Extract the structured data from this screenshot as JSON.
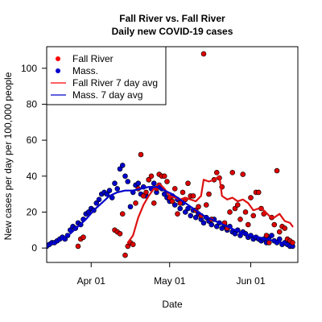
{
  "chart_data": {
    "type": "scatter",
    "title": "Fall River vs. Fall River",
    "subtitle": "Daily new COVID-19 cases",
    "xlabel": "Date",
    "ylabel": "New cases per day per 100,000 people",
    "xlim": [
      "2020-03-15",
      "2020-06-19"
    ],
    "ylim": [
      -8,
      112
    ],
    "x_ticks": [
      {
        "date": "2020-04-01",
        "label": "Apr 01"
      },
      {
        "date": "2020-05-01",
        "label": "May 01"
      },
      {
        "date": "2020-06-01",
        "label": "Jun 01"
      }
    ],
    "y_ticks": [
      0,
      20,
      40,
      60,
      80,
      100
    ],
    "legend": {
      "position": "top-left",
      "entries": [
        {
          "label": "Fall River",
          "kind": "point",
          "color": "#ff0000"
        },
        {
          "label": "Mass.",
          "kind": "point",
          "color": "#0000cd"
        },
        {
          "label": "Fall River 7 day avg",
          "kind": "line",
          "color": "#ff0000"
        },
        {
          "label": "Mass. 7 day avg",
          "kind": "line",
          "color": "#0000cd"
        }
      ]
    },
    "series": [
      {
        "name": "Fall River",
        "kind": "points",
        "color": "#dd0000",
        "points": [
          [
            "2020-03-27",
            1
          ],
          [
            "2020-03-28",
            5
          ],
          [
            "2020-03-29",
            6
          ],
          [
            "2020-04-10",
            10
          ],
          [
            "2020-04-11",
            9
          ],
          [
            "2020-04-12",
            8
          ],
          [
            "2020-04-13",
            19
          ],
          [
            "2020-04-14",
            -4
          ],
          [
            "2020-04-15",
            1
          ],
          [
            "2020-04-16",
            3
          ],
          [
            "2020-04-17",
            2
          ],
          [
            "2020-04-18",
            25
          ],
          [
            "2020-04-19",
            33
          ],
          [
            "2020-04-20",
            52
          ],
          [
            "2020-04-21",
            29
          ],
          [
            "2020-04-22",
            31
          ],
          [
            "2020-04-23",
            38
          ],
          [
            "2020-04-24",
            40
          ],
          [
            "2020-04-25",
            25
          ],
          [
            "2020-04-26",
            33
          ],
          [
            "2020-04-27",
            41
          ],
          [
            "2020-04-28",
            40
          ],
          [
            "2020-04-29",
            40
          ],
          [
            "2020-04-30",
            37
          ],
          [
            "2020-05-01",
            28
          ],
          [
            "2020-05-02",
            26
          ],
          [
            "2020-05-03",
            33
          ],
          [
            "2020-05-04",
            19
          ],
          [
            "2020-05-05",
            25
          ],
          [
            "2020-05-06",
            31
          ],
          [
            "2020-05-07",
            27
          ],
          [
            "2020-05-08",
            36
          ],
          [
            "2020-05-09",
            29
          ],
          [
            "2020-05-10",
            29
          ],
          [
            "2020-05-11",
            21
          ],
          [
            "2020-05-12",
            23
          ],
          [
            "2020-05-13",
            18
          ],
          [
            "2020-05-14",
            108
          ],
          [
            "2020-05-15",
            24
          ],
          [
            "2020-05-16",
            30
          ],
          [
            "2020-05-17",
            16
          ],
          [
            "2020-05-18",
            38
          ],
          [
            "2020-05-19",
            42
          ],
          [
            "2020-05-20",
            39
          ],
          [
            "2020-05-21",
            34
          ],
          [
            "2020-05-22",
            14
          ],
          [
            "2020-05-23",
            11
          ],
          [
            "2020-05-24",
            20
          ],
          [
            "2020-05-25",
            42
          ],
          [
            "2020-05-26",
            22
          ],
          [
            "2020-05-27",
            24
          ],
          [
            "2020-05-28",
            16
          ],
          [
            "2020-05-29",
            41
          ],
          [
            "2020-05-30",
            20
          ],
          [
            "2020-05-31",
            13
          ],
          [
            "2020-06-01",
            28
          ],
          [
            "2020-06-02",
            18
          ],
          [
            "2020-06-03",
            31
          ],
          [
            "2020-06-04",
            31
          ],
          [
            "2020-06-05",
            22
          ],
          [
            "2020-06-06",
            19
          ],
          [
            "2020-06-07",
            7
          ],
          [
            "2020-06-08",
            3
          ],
          [
            "2020-06-09",
            17
          ],
          [
            "2020-06-10",
            13
          ],
          [
            "2020-06-11",
            43
          ],
          [
            "2020-06-12",
            9
          ],
          [
            "2020-06-13",
            12
          ],
          [
            "2020-06-14",
            11
          ],
          [
            "2020-06-15",
            5
          ],
          [
            "2020-06-16",
            4
          ],
          [
            "2020-06-17",
            3
          ]
        ]
      },
      {
        "name": "Mass.",
        "kind": "points",
        "color": "#0000cd",
        "points": [
          [
            "2020-03-15",
            1
          ],
          [
            "2020-03-16",
            2
          ],
          [
            "2020-03-17",
            3
          ],
          [
            "2020-03-18",
            3
          ],
          [
            "2020-03-19",
            4
          ],
          [
            "2020-03-20",
            5
          ],
          [
            "2020-03-21",
            6
          ],
          [
            "2020-03-22",
            5
          ],
          [
            "2020-03-23",
            7
          ],
          [
            "2020-03-24",
            10
          ],
          [
            "2020-03-25",
            12
          ],
          [
            "2020-03-26",
            11
          ],
          [
            "2020-03-27",
            14
          ],
          [
            "2020-03-28",
            13
          ],
          [
            "2020-03-29",
            16
          ],
          [
            "2020-03-30",
            19
          ],
          [
            "2020-03-31",
            20
          ],
          [
            "2020-04-01",
            22
          ],
          [
            "2020-04-02",
            21
          ],
          [
            "2020-04-03",
            25
          ],
          [
            "2020-04-04",
            27
          ],
          [
            "2020-04-05",
            30
          ],
          [
            "2020-04-06",
            31
          ],
          [
            "2020-04-07",
            30
          ],
          [
            "2020-04-08",
            32
          ],
          [
            "2020-04-09",
            28
          ],
          [
            "2020-04-10",
            36
          ],
          [
            "2020-04-11",
            33
          ],
          [
            "2020-04-12",
            44
          ],
          [
            "2020-04-13",
            46
          ],
          [
            "2020-04-14",
            40
          ],
          [
            "2020-04-15",
            37
          ],
          [
            "2020-04-16",
            23
          ],
          [
            "2020-04-17",
            31
          ],
          [
            "2020-04-18",
            35
          ],
          [
            "2020-04-19",
            36
          ],
          [
            "2020-04-20",
            30
          ],
          [
            "2020-04-21",
            34
          ],
          [
            "2020-04-22",
            29
          ],
          [
            "2020-04-23",
            38
          ],
          [
            "2020-04-24",
            33
          ],
          [
            "2020-04-25",
            36
          ],
          [
            "2020-04-26",
            31
          ],
          [
            "2020-04-27",
            35
          ],
          [
            "2020-04-28",
            33
          ],
          [
            "2020-04-29",
            30
          ],
          [
            "2020-04-30",
            28
          ],
          [
            "2020-05-01",
            26
          ],
          [
            "2020-05-02",
            29
          ],
          [
            "2020-05-03",
            24
          ],
          [
            "2020-05-04",
            27
          ],
          [
            "2020-05-05",
            22
          ],
          [
            "2020-05-06",
            25
          ],
          [
            "2020-05-07",
            20
          ],
          [
            "2020-05-08",
            22
          ],
          [
            "2020-05-09",
            18
          ],
          [
            "2020-05-10",
            21
          ],
          [
            "2020-05-11",
            17
          ],
          [
            "2020-05-12",
            19
          ],
          [
            "2020-05-13",
            16
          ],
          [
            "2020-05-14",
            14
          ],
          [
            "2020-05-15",
            17
          ],
          [
            "2020-05-16",
            15
          ],
          [
            "2020-05-17",
            13
          ],
          [
            "2020-05-18",
            16
          ],
          [
            "2020-05-19",
            12
          ],
          [
            "2020-05-20",
            14
          ],
          [
            "2020-05-21",
            11
          ],
          [
            "2020-05-22",
            13
          ],
          [
            "2020-05-23",
            10
          ],
          [
            "2020-05-24",
            12
          ],
          [
            "2020-05-25",
            9
          ],
          [
            "2020-05-26",
            8
          ],
          [
            "2020-05-27",
            10
          ],
          [
            "2020-05-28",
            7
          ],
          [
            "2020-05-29",
            9
          ],
          [
            "2020-05-30",
            8
          ],
          [
            "2020-05-31",
            6
          ],
          [
            "2020-06-01",
            7
          ],
          [
            "2020-06-02",
            5
          ],
          [
            "2020-06-03",
            6
          ],
          [
            "2020-06-04",
            5
          ],
          [
            "2020-06-05",
            4
          ],
          [
            "2020-06-06",
            5
          ],
          [
            "2020-06-07",
            3
          ],
          [
            "2020-06-08",
            6
          ],
          [
            "2020-06-09",
            7
          ],
          [
            "2020-06-10",
            4
          ],
          [
            "2020-06-11",
            3
          ],
          [
            "2020-06-12",
            5
          ],
          [
            "2020-06-13",
            2
          ],
          [
            "2020-06-14",
            3
          ],
          [
            "2020-06-15",
            2
          ],
          [
            "2020-06-16",
            1
          ],
          [
            "2020-06-17",
            1
          ]
        ]
      },
      {
        "name": "Fall River 7 day avg",
        "kind": "line",
        "color": "#dd1111",
        "points": [
          [
            "2020-04-15",
            3
          ],
          [
            "2020-04-17",
            7
          ],
          [
            "2020-04-19",
            17
          ],
          [
            "2020-04-21",
            24
          ],
          [
            "2020-04-23",
            29
          ],
          [
            "2020-04-25",
            33
          ],
          [
            "2020-04-27",
            36
          ],
          [
            "2020-04-29",
            33
          ],
          [
            "2020-05-01",
            29
          ],
          [
            "2020-05-03",
            28
          ],
          [
            "2020-05-05",
            27
          ],
          [
            "2020-05-07",
            28
          ],
          [
            "2020-05-09",
            27
          ],
          [
            "2020-05-11",
            26
          ],
          [
            "2020-05-13",
            29
          ],
          [
            "2020-05-14",
            38
          ],
          [
            "2020-05-16",
            37
          ],
          [
            "2020-05-18",
            38
          ],
          [
            "2020-05-20",
            40
          ],
          [
            "2020-05-21",
            29
          ],
          [
            "2020-05-23",
            27
          ],
          [
            "2020-05-25",
            28
          ],
          [
            "2020-05-27",
            26
          ],
          [
            "2020-05-29",
            27
          ],
          [
            "2020-05-31",
            25
          ],
          [
            "2020-06-02",
            21
          ],
          [
            "2020-06-04",
            22
          ],
          [
            "2020-06-06",
            21
          ],
          [
            "2020-06-08",
            18
          ],
          [
            "2020-06-10",
            17
          ],
          [
            "2020-06-12",
            19
          ],
          [
            "2020-06-14",
            15
          ],
          [
            "2020-06-16",
            14
          ],
          [
            "2020-06-17",
            12
          ]
        ]
      },
      {
        "name": "Mass. 7 day avg",
        "kind": "line",
        "color": "#0000cd",
        "points": [
          [
            "2020-03-15",
            1
          ],
          [
            "2020-03-18",
            3
          ],
          [
            "2020-03-21",
            5
          ],
          [
            "2020-03-24",
            8
          ],
          [
            "2020-03-27",
            12
          ],
          [
            "2020-03-30",
            16
          ],
          [
            "2020-04-02",
            21
          ],
          [
            "2020-04-05",
            25
          ],
          [
            "2020-04-08",
            29
          ],
          [
            "2020-04-11",
            31
          ],
          [
            "2020-04-14",
            32
          ],
          [
            "2020-04-17",
            32
          ],
          [
            "2020-04-20",
            33
          ],
          [
            "2020-04-23",
            34
          ],
          [
            "2020-04-26",
            34
          ],
          [
            "2020-04-29",
            32
          ],
          [
            "2020-05-02",
            30
          ],
          [
            "2020-05-05",
            27
          ],
          [
            "2020-05-08",
            24
          ],
          [
            "2020-05-11",
            21
          ],
          [
            "2020-05-14",
            18
          ],
          [
            "2020-05-17",
            16
          ],
          [
            "2020-05-20",
            14
          ],
          [
            "2020-05-23",
            12
          ],
          [
            "2020-05-26",
            10
          ],
          [
            "2020-05-29",
            8
          ],
          [
            "2020-06-01",
            7
          ],
          [
            "2020-06-04",
            6
          ],
          [
            "2020-06-07",
            5
          ],
          [
            "2020-06-10",
            4
          ],
          [
            "2020-06-13",
            3
          ],
          [
            "2020-06-17",
            1
          ]
        ]
      }
    ]
  }
}
